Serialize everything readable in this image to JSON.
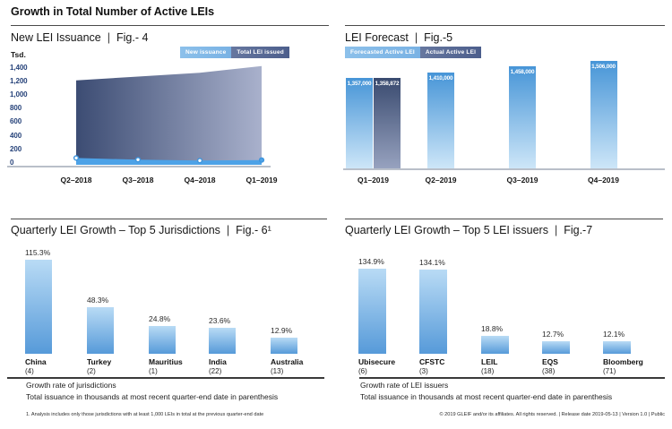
{
  "page": {
    "title": "Growth in Total Number of Active LEIs",
    "pipe": "|",
    "footnote": "1. Analysis includes only those jurisdictions with at least 1,000 LEIs in total at the previous quarter-end date",
    "copyright": "© 2019 GLEIF and/or its affiliates. All rights reserved.  |  Release date 2019-05-13  |  Version 1.0  |  Public"
  },
  "colors": {
    "light_blue": "#4da2e7",
    "marker_stroke": "#3e95dd",
    "slate_dark": "#3c4c73",
    "slate_light": "#a9b1cc",
    "bar_blue_top": "#4795d7",
    "bar_blue_bottom": "#cde6f8",
    "bar_dark_top": "#394a6f",
    "bar_dark_bottom": "#97a2bf",
    "growth_bar_top": "#b9dbf5",
    "growth_bar_bottom": "#569ad9",
    "axis_text": "#27437a"
  },
  "chart_data": [
    {
      "id": "fig4",
      "type": "area",
      "title": "New LEI Issuance",
      "fig": "Fig.- 4",
      "unit_label": "Tsd.",
      "x": [
        "Q2–2018",
        "Q3–2018",
        "Q4–2018",
        "Q1–2019"
      ],
      "series": [
        {
          "name": "New issuance",
          "values": [
            100,
            75,
            62,
            70
          ]
        },
        {
          "name": "Total LEI issued",
          "values": [
            1240,
            1295,
            1350,
            1450
          ]
        }
      ],
      "ylim": [
        0,
        1400
      ],
      "yticks": [
        {
          "value": 0,
          "label": "0"
        },
        {
          "value": 200,
          "label": "200"
        },
        {
          "value": 400,
          "label": "400"
        },
        {
          "value": 600,
          "label": "600"
        },
        {
          "value": 800,
          "label": "800"
        },
        {
          "value": 1000,
          "label": "1,000"
        },
        {
          "value": 1200,
          "label": "1,200"
        },
        {
          "value": 1400,
          "label": "1,400"
        }
      ],
      "legend_position": "top-right"
    },
    {
      "id": "fig5",
      "type": "bar",
      "title": "LEI Forecast",
      "fig": "Fig.-5",
      "categories": [
        "Q1–2019",
        "Q2–2019",
        "Q3–2019",
        "Q4–2019"
      ],
      "series": [
        {
          "name": "Forecasted Active LEI",
          "values": [
            1357000,
            1410000,
            1458000,
            1506000
          ],
          "labels": [
            "1,357,000",
            "1,410,000",
            "1,458,000",
            "1,506,000"
          ]
        },
        {
          "name": "Actual Active LEI",
          "values": [
            1358872
          ],
          "labels": [
            "1,358,872"
          ]
        }
      ],
      "legend_position": "top-left"
    },
    {
      "id": "fig6",
      "type": "bar",
      "title": "Quarterly LEI Growth – Top 5 Jurisdictions",
      "fig": "Fig.- 6¹",
      "categories": [
        "China",
        "Turkey",
        "Mauritius",
        "India",
        "Australia"
      ],
      "sub_labels": [
        "(4)",
        "(2)",
        "(1)",
        "(22)",
        "(13)"
      ],
      "values": [
        115.3,
        48.3,
        24.8,
        23.6,
        12.9
      ],
      "value_labels": [
        "115.3%",
        "48.3%",
        "24.8%",
        "23.6%",
        "12.9%"
      ],
      "caption1": "Growth rate of jurisdictions",
      "caption2": "Total issuance in thousands at most recent quarter-end date in parenthesis"
    },
    {
      "id": "fig7",
      "type": "bar",
      "title": "Quarterly LEI Growth – Top 5 LEI issuers",
      "fig": "Fig.-7",
      "categories": [
        "Ubisecure",
        "CFSTC",
        "LEIL",
        "EQS",
        "Bloomberg"
      ],
      "sub_labels": [
        "(6)",
        "(3)",
        "(18)",
        "(38)",
        "(71)"
      ],
      "values": [
        134.9,
        134.1,
        18.8,
        12.7,
        12.1
      ],
      "value_labels": [
        "134.9%",
        "134.1%",
        "18.8%",
        "12.7%",
        "12.1%"
      ],
      "caption1": "Growth rate of LEI issuers",
      "caption2": "Total issuance in thousands at most recent quarter-end date in parenthesis"
    }
  ]
}
